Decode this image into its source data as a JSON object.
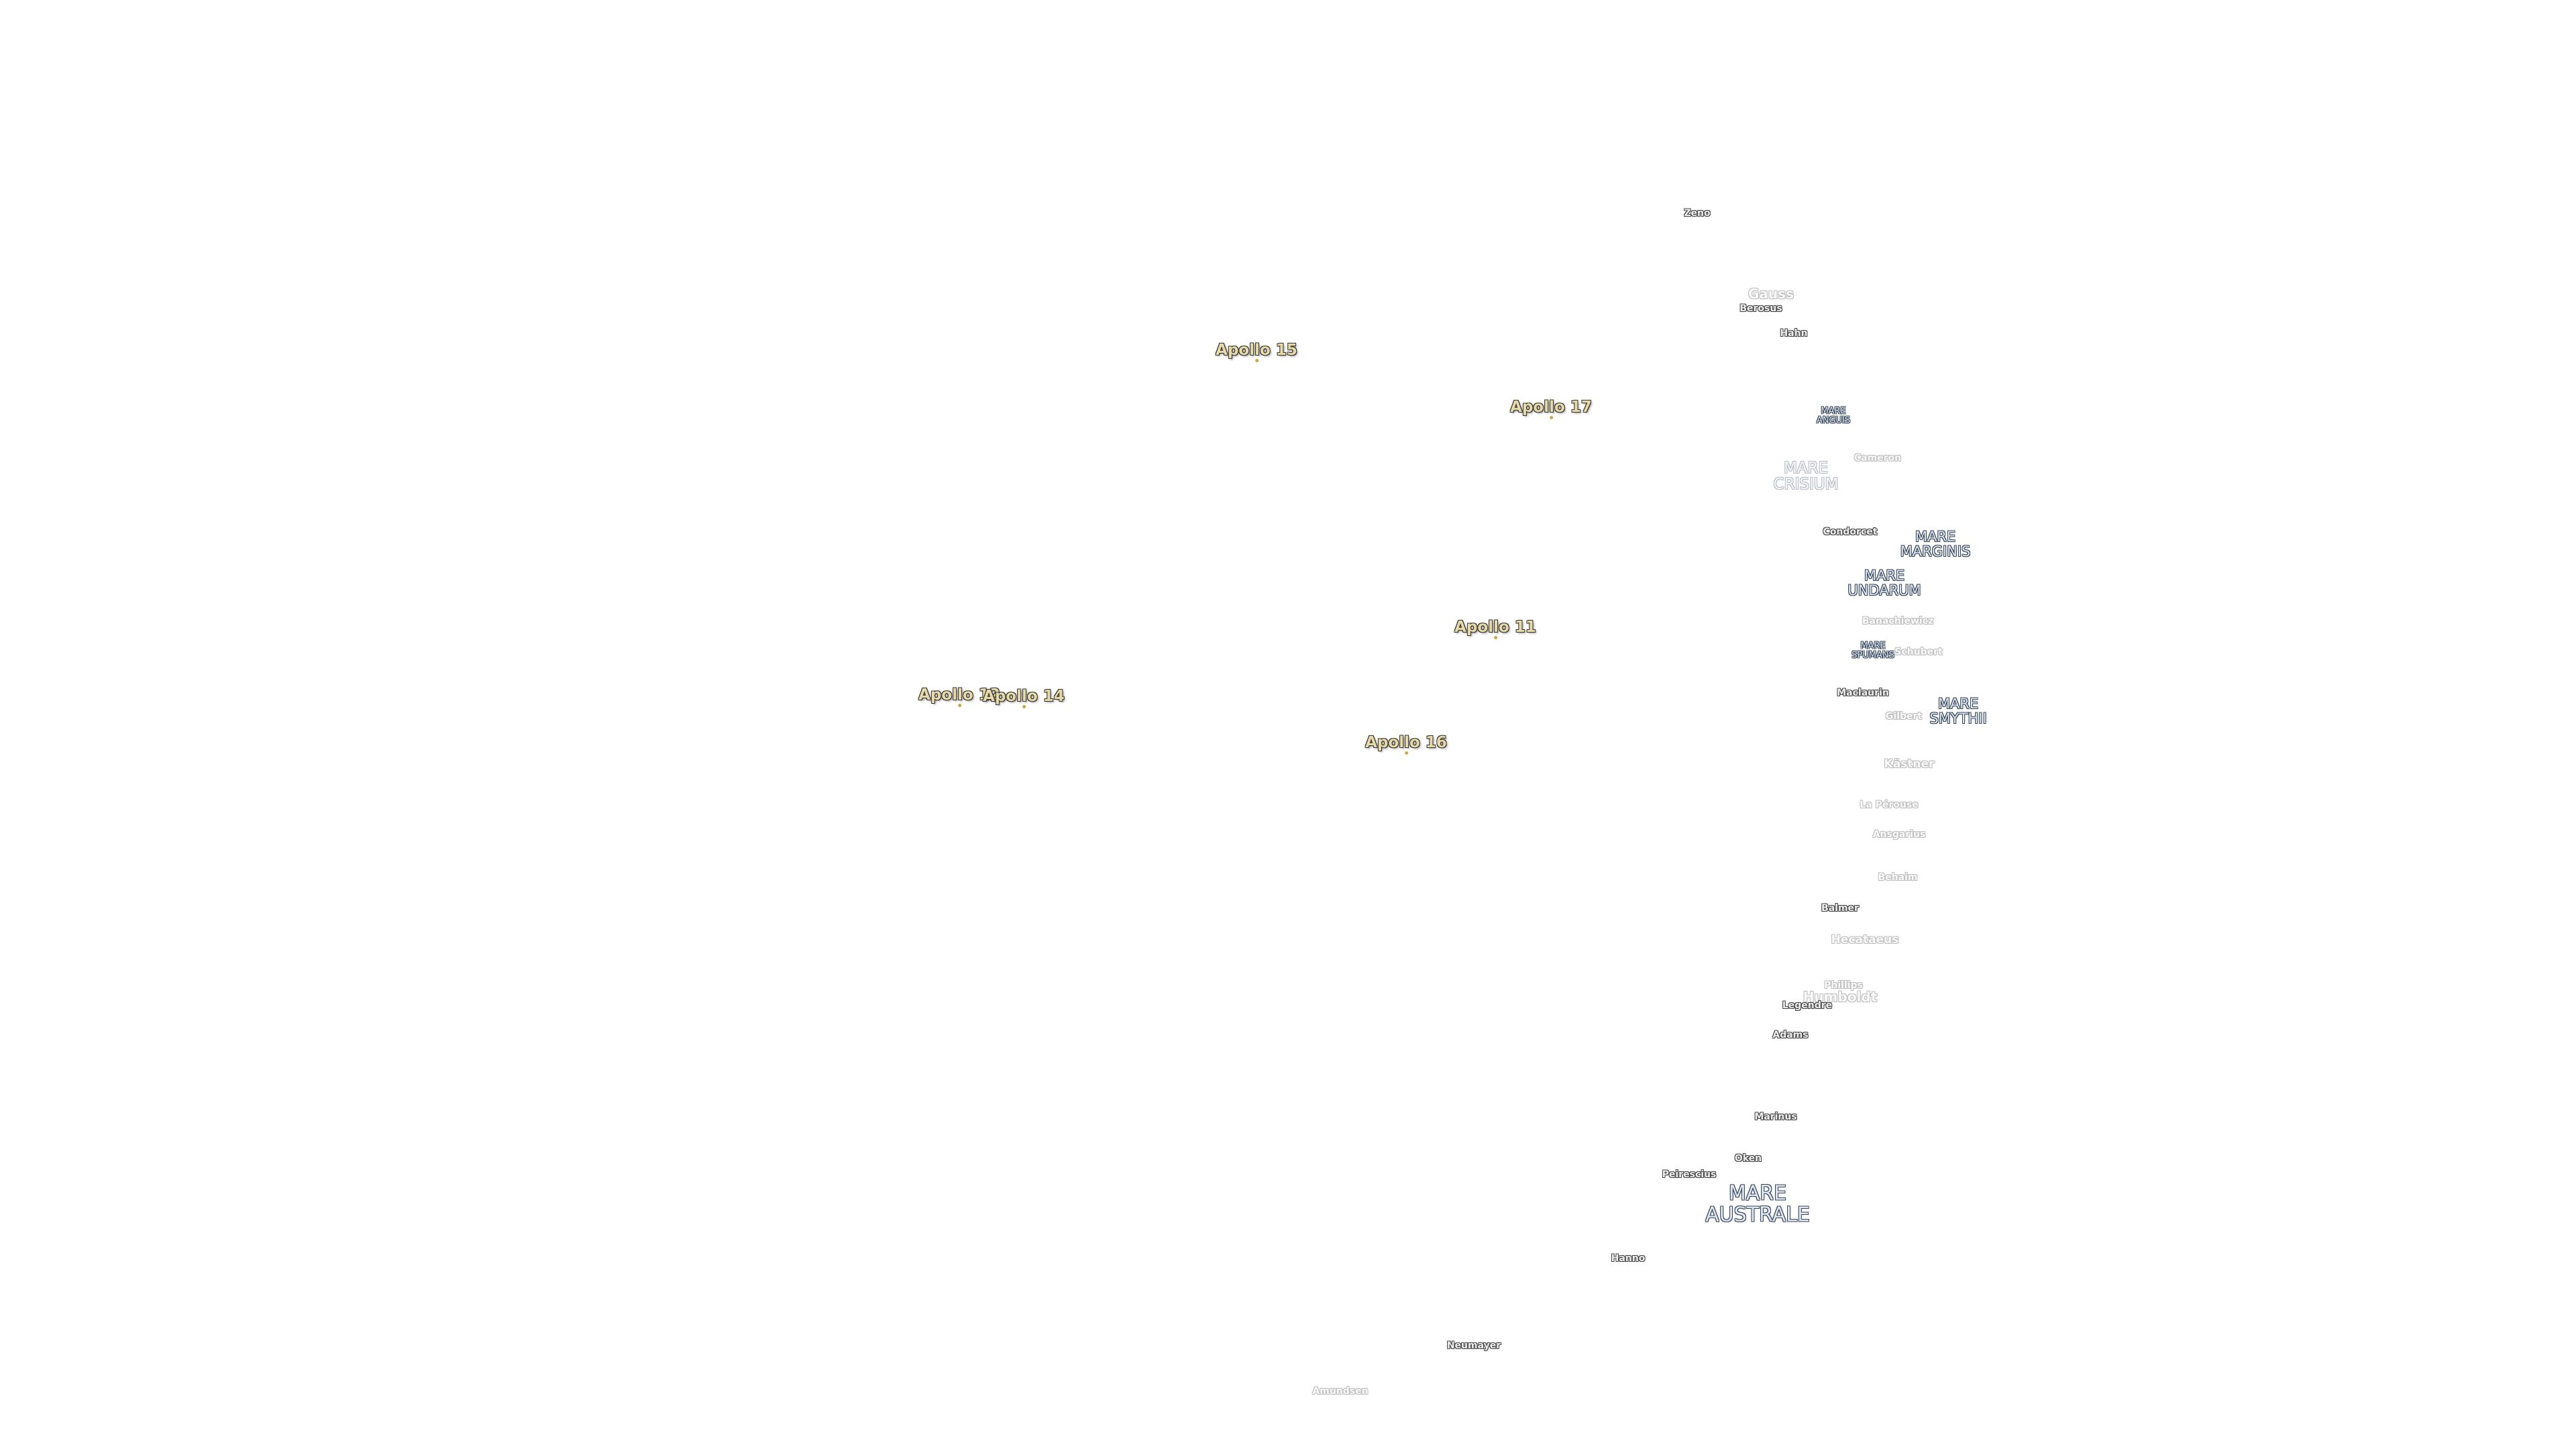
{
  "missions": [
    "Apollo 15",
    "Apollo 17",
    "Apollo 11",
    "Apollo 12",
    "Apollo 14",
    "Apollo 16"
  ],
  "maria": [
    "MARE CRISIUM",
    "MARE MARGINIS",
    "MARE UNDARUM",
    "MARE SMYTHII",
    "MARE AUSTRALE",
    "MARE ANGUIS",
    "MARE SPUMANS"
  ],
  "craters": [
    "Zeno",
    "Gauss",
    "Berosus",
    "Hahn",
    "Cameron",
    "Condorcet",
    "Banachiewicz",
    "Schubert",
    "Maclaurin",
    "Gilbert",
    "Kästner",
    "La Pérouse",
    "Ansgarius",
    "Behaim",
    "Balmer",
    "Hecataeus",
    "Phillips",
    "Humboldt",
    "Legendre",
    "Adams",
    "Marinus",
    "Oken",
    "Peirescius",
    "Hanno",
    "Neumayer",
    "Amundsen"
  ]
}
